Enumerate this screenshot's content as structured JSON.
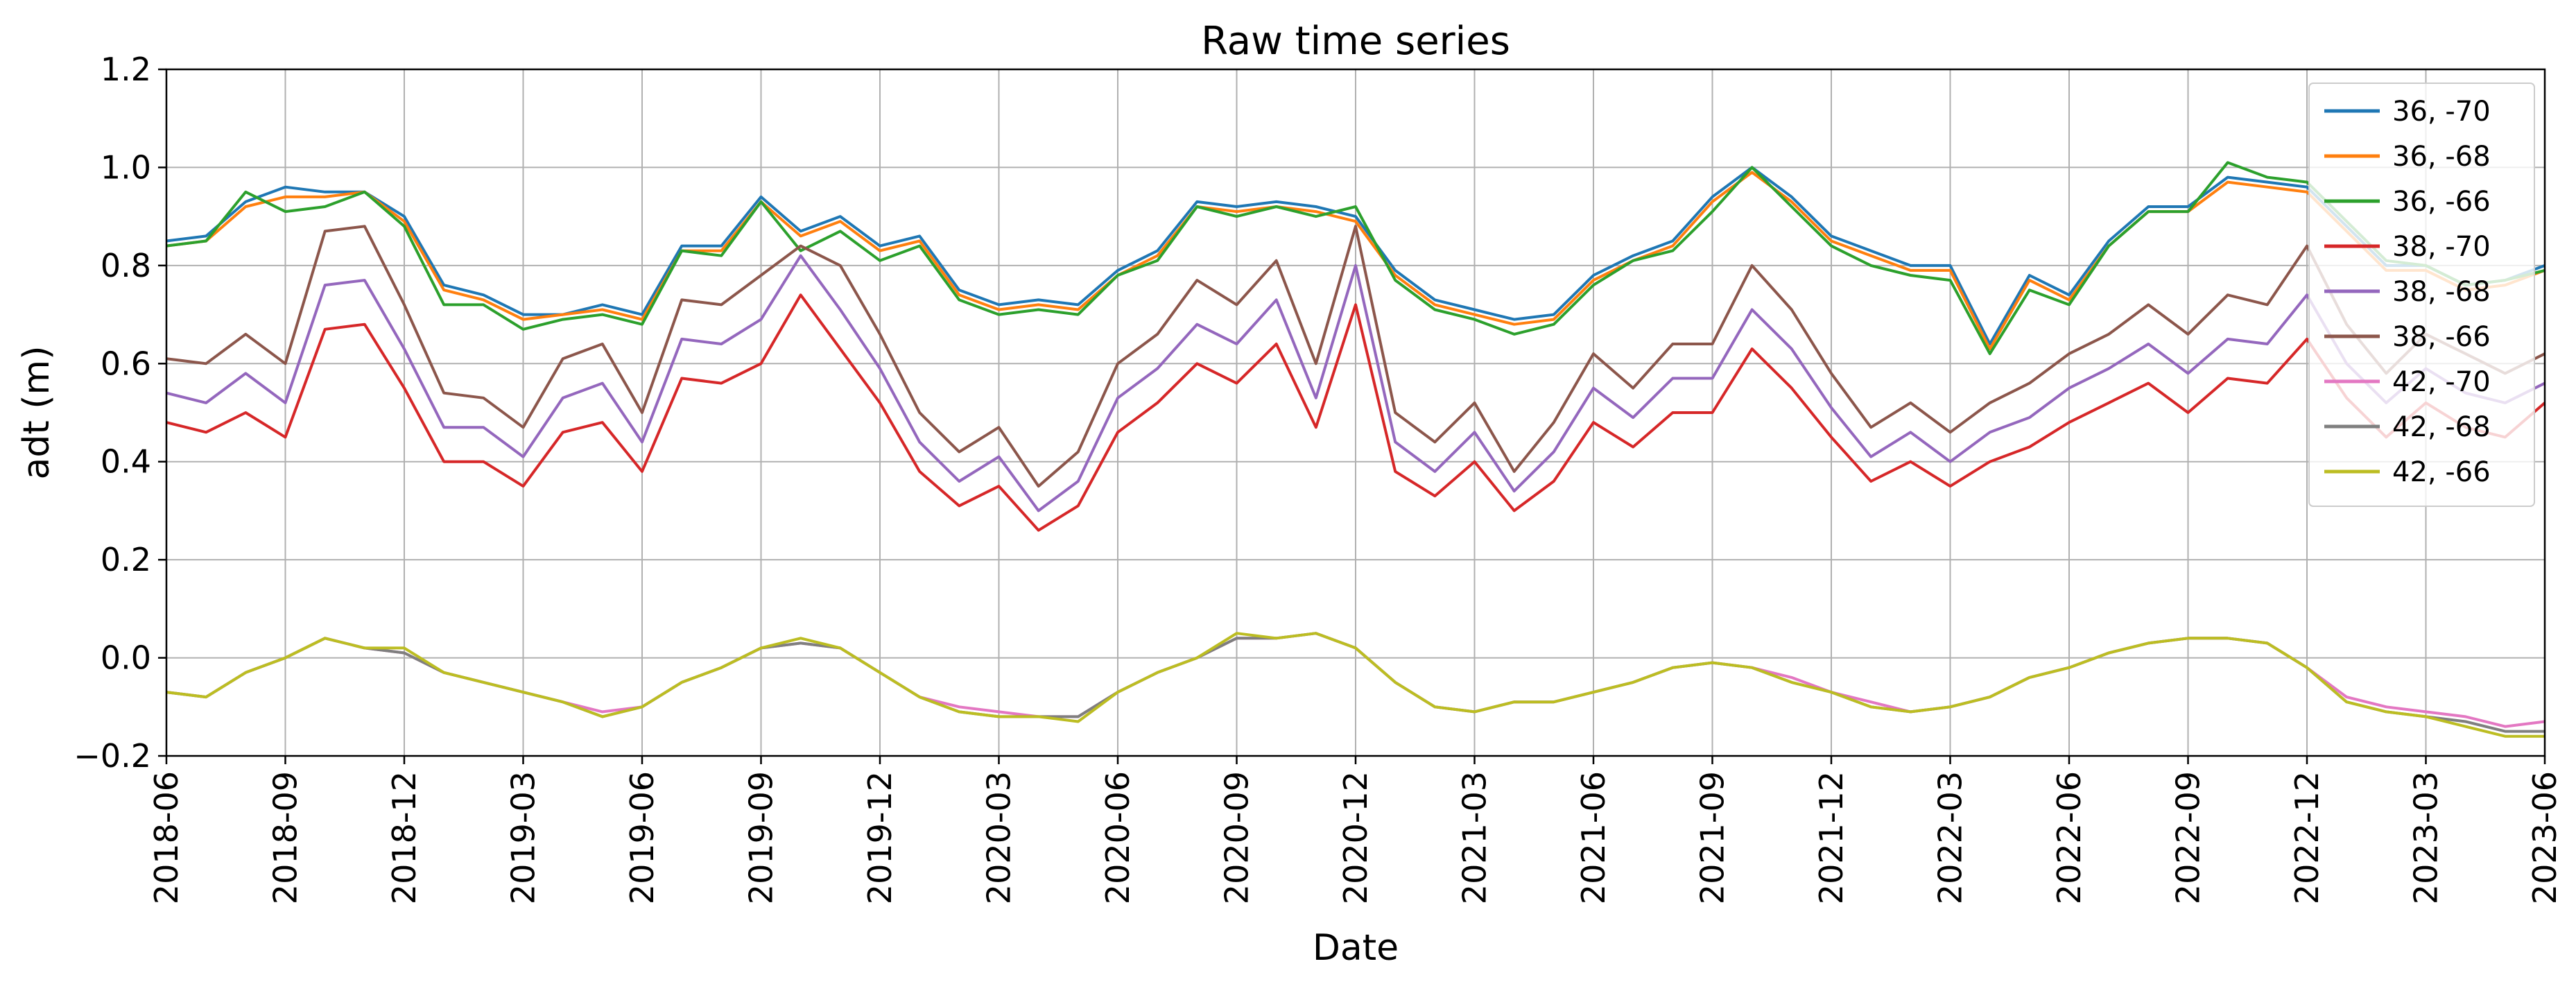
{
  "chart_data": {
    "type": "line",
    "title": "Raw time series",
    "xlabel": "Date",
    "ylabel": "adt (m)",
    "xlim": [
      "2018-06",
      "2023-06"
    ],
    "ylim": [
      -0.2,
      1.2
    ],
    "grid": true,
    "legend_position": "top-right",
    "x_ticks": [
      "2018-06",
      "2018-09",
      "2018-12",
      "2019-03",
      "2019-06",
      "2019-09",
      "2019-12",
      "2020-03",
      "2020-06",
      "2020-09",
      "2020-12",
      "2021-03",
      "2021-06",
      "2021-09",
      "2021-12",
      "2022-03",
      "2022-06",
      "2022-09",
      "2022-12",
      "2023-03",
      "2023-06"
    ],
    "y_ticks": [
      "−0.2",
      "0.0",
      "0.2",
      "0.4",
      "0.6",
      "0.8",
      "1.0",
      "1.2"
    ],
    "x": [
      "2018-06",
      "2018-07",
      "2018-08",
      "2018-09",
      "2018-10",
      "2018-11",
      "2018-12",
      "2019-01",
      "2019-02",
      "2019-03",
      "2019-04",
      "2019-05",
      "2019-06",
      "2019-07",
      "2019-08",
      "2019-09",
      "2019-10",
      "2019-11",
      "2019-12",
      "2020-01",
      "2020-02",
      "2020-03",
      "2020-04",
      "2020-05",
      "2020-06",
      "2020-07",
      "2020-08",
      "2020-09",
      "2020-10",
      "2020-11",
      "2020-12",
      "2021-01",
      "2021-02",
      "2021-03",
      "2021-04",
      "2021-05",
      "2021-06",
      "2021-07",
      "2021-08",
      "2021-09",
      "2021-10",
      "2021-11",
      "2021-12",
      "2022-01",
      "2022-02",
      "2022-03",
      "2022-04",
      "2022-05",
      "2022-06",
      "2022-07",
      "2022-08",
      "2022-09",
      "2022-10",
      "2022-11",
      "2022-12",
      "2023-01",
      "2023-02",
      "2023-03",
      "2023-04",
      "2023-05",
      "2023-06"
    ],
    "series": [
      {
        "name": "36, -70",
        "color": "#1f77b4",
        "values": [
          0.85,
          0.86,
          0.93,
          0.96,
          0.95,
          0.95,
          0.9,
          0.76,
          0.74,
          0.7,
          0.7,
          0.72,
          0.7,
          0.84,
          0.84,
          0.94,
          0.87,
          0.9,
          0.84,
          0.86,
          0.75,
          0.72,
          0.73,
          0.72,
          0.79,
          0.83,
          0.93,
          0.92,
          0.93,
          0.92,
          0.9,
          0.79,
          0.73,
          0.71,
          0.69,
          0.7,
          0.78,
          0.82,
          0.85,
          0.94,
          1.0,
          0.94,
          0.86,
          0.83,
          0.8,
          0.8,
          0.64,
          0.78,
          0.74,
          0.85,
          0.92,
          0.92,
          0.98,
          0.97,
          0.96,
          0.88,
          0.8,
          0.8,
          0.76,
          0.77,
          0.8
        ]
      },
      {
        "name": "36, -68",
        "color": "#ff7f0e",
        "values": [
          0.84,
          0.85,
          0.92,
          0.94,
          0.94,
          0.95,
          0.89,
          0.75,
          0.73,
          0.69,
          0.7,
          0.71,
          0.69,
          0.83,
          0.83,
          0.93,
          0.86,
          0.89,
          0.83,
          0.85,
          0.74,
          0.71,
          0.72,
          0.71,
          0.78,
          0.82,
          0.92,
          0.91,
          0.92,
          0.91,
          0.89,
          0.78,
          0.72,
          0.7,
          0.68,
          0.69,
          0.77,
          0.81,
          0.84,
          0.93,
          0.99,
          0.93,
          0.85,
          0.82,
          0.79,
          0.79,
          0.63,
          0.77,
          0.73,
          0.84,
          0.91,
          0.91,
          0.97,
          0.96,
          0.95,
          0.87,
          0.79,
          0.79,
          0.75,
          0.76,
          0.79
        ]
      },
      {
        "name": "36, -66",
        "color": "#2ca02c",
        "values": [
          0.84,
          0.85,
          0.95,
          0.91,
          0.92,
          0.95,
          0.88,
          0.72,
          0.72,
          0.67,
          0.69,
          0.7,
          0.68,
          0.83,
          0.82,
          0.93,
          0.83,
          0.87,
          0.81,
          0.84,
          0.73,
          0.7,
          0.71,
          0.7,
          0.78,
          0.81,
          0.92,
          0.9,
          0.92,
          0.9,
          0.92,
          0.77,
          0.71,
          0.69,
          0.66,
          0.68,
          0.76,
          0.81,
          0.83,
          0.91,
          1.0,
          0.92,
          0.84,
          0.8,
          0.78,
          0.77,
          0.62,
          0.75,
          0.72,
          0.84,
          0.91,
          0.91,
          1.01,
          0.98,
          0.97,
          0.89,
          0.81,
          0.8,
          0.76,
          0.77,
          0.79
        ]
      },
      {
        "name": "38, -70",
        "color": "#d62728",
        "values": [
          0.48,
          0.46,
          0.5,
          0.45,
          0.67,
          0.68,
          0.55,
          0.4,
          0.4,
          0.35,
          0.46,
          0.48,
          0.38,
          0.57,
          0.56,
          0.6,
          0.74,
          0.63,
          0.52,
          0.38,
          0.31,
          0.35,
          0.26,
          0.31,
          0.46,
          0.52,
          0.6,
          0.56,
          0.64,
          0.47,
          0.72,
          0.38,
          0.33,
          0.4,
          0.3,
          0.36,
          0.48,
          0.43,
          0.5,
          0.5,
          0.63,
          0.55,
          0.45,
          0.36,
          0.4,
          0.35,
          0.4,
          0.43,
          0.48,
          0.52,
          0.56,
          0.5,
          0.57,
          0.56,
          0.65,
          0.53,
          0.45,
          0.52,
          0.47,
          0.45,
          0.52
        ]
      },
      {
        "name": "38, -68",
        "color": "#9467bd",
        "values": [
          0.54,
          0.52,
          0.58,
          0.52,
          0.76,
          0.77,
          0.63,
          0.47,
          0.47,
          0.41,
          0.53,
          0.56,
          0.44,
          0.65,
          0.64,
          0.69,
          0.82,
          0.71,
          0.59,
          0.44,
          0.36,
          0.41,
          0.3,
          0.36,
          0.53,
          0.59,
          0.68,
          0.64,
          0.73,
          0.53,
          0.8,
          0.44,
          0.38,
          0.46,
          0.34,
          0.42,
          0.55,
          0.49,
          0.57,
          0.57,
          0.71,
          0.63,
          0.51,
          0.41,
          0.46,
          0.4,
          0.46,
          0.49,
          0.55,
          0.59,
          0.64,
          0.58,
          0.65,
          0.64,
          0.74,
          0.6,
          0.52,
          0.59,
          0.54,
          0.52,
          0.56
        ]
      },
      {
        "name": "38, -66",
        "color": "#8c564b",
        "values": [
          0.61,
          0.6,
          0.66,
          0.6,
          0.87,
          0.88,
          0.72,
          0.54,
          0.53,
          0.47,
          0.61,
          0.64,
          0.5,
          0.73,
          0.72,
          0.78,
          0.84,
          0.8,
          0.66,
          0.5,
          0.42,
          0.47,
          0.35,
          0.42,
          0.6,
          0.66,
          0.77,
          0.72,
          0.81,
          0.6,
          0.88,
          0.5,
          0.44,
          0.52,
          0.38,
          0.48,
          0.62,
          0.55,
          0.64,
          0.64,
          0.8,
          0.71,
          0.58,
          0.47,
          0.52,
          0.46,
          0.52,
          0.56,
          0.62,
          0.66,
          0.72,
          0.66,
          0.74,
          0.72,
          0.84,
          0.68,
          0.58,
          0.66,
          0.62,
          0.58,
          0.62
        ]
      },
      {
        "name": "42, -70",
        "color": "#e377c2",
        "values": [
          -0.07,
          -0.08,
          -0.03,
          0.0,
          0.04,
          0.02,
          0.01,
          -0.03,
          -0.05,
          -0.07,
          -0.09,
          -0.11,
          -0.1,
          -0.05,
          -0.02,
          0.02,
          0.03,
          0.02,
          -0.03,
          -0.08,
          -0.1,
          -0.11,
          -0.12,
          -0.12,
          -0.07,
          -0.03,
          0.0,
          0.04,
          0.04,
          0.05,
          0.02,
          -0.05,
          -0.1,
          -0.11,
          -0.09,
          -0.09,
          -0.07,
          -0.05,
          -0.02,
          -0.01,
          -0.02,
          -0.04,
          -0.07,
          -0.09,
          -0.11,
          -0.1,
          -0.08,
          -0.04,
          -0.02,
          0.01,
          0.03,
          0.04,
          0.04,
          0.03,
          -0.02,
          -0.08,
          -0.1,
          -0.11,
          -0.12,
          -0.14,
          -0.13
        ]
      },
      {
        "name": "42, -68",
        "color": "#7f7f7f",
        "values": [
          -0.07,
          -0.08,
          -0.03,
          0.0,
          0.04,
          0.02,
          0.01,
          -0.03,
          -0.05,
          -0.07,
          -0.09,
          -0.12,
          -0.1,
          -0.05,
          -0.02,
          0.02,
          0.03,
          0.02,
          -0.03,
          -0.08,
          -0.11,
          -0.12,
          -0.12,
          -0.12,
          -0.07,
          -0.03,
          0.0,
          0.04,
          0.04,
          0.05,
          0.02,
          -0.05,
          -0.1,
          -0.11,
          -0.09,
          -0.09,
          -0.07,
          -0.05,
          -0.02,
          -0.01,
          -0.02,
          -0.05,
          -0.07,
          -0.1,
          -0.11,
          -0.1,
          -0.08,
          -0.04,
          -0.02,
          0.01,
          0.03,
          0.04,
          0.04,
          0.03,
          -0.02,
          -0.09,
          -0.11,
          -0.12,
          -0.13,
          -0.15,
          -0.15
        ]
      },
      {
        "name": "42, -66",
        "color": "#bcbd22",
        "values": [
          -0.07,
          -0.08,
          -0.03,
          0.0,
          0.04,
          0.02,
          0.02,
          -0.03,
          -0.05,
          -0.07,
          -0.09,
          -0.12,
          -0.1,
          -0.05,
          -0.02,
          0.02,
          0.04,
          0.02,
          -0.03,
          -0.08,
          -0.11,
          -0.12,
          -0.12,
          -0.13,
          -0.07,
          -0.03,
          0.0,
          0.05,
          0.04,
          0.05,
          0.02,
          -0.05,
          -0.1,
          -0.11,
          -0.09,
          -0.09,
          -0.07,
          -0.05,
          -0.02,
          -0.01,
          -0.02,
          -0.05,
          -0.07,
          -0.1,
          -0.11,
          -0.1,
          -0.08,
          -0.04,
          -0.02,
          0.01,
          0.03,
          0.04,
          0.04,
          0.03,
          -0.02,
          -0.09,
          -0.11,
          -0.12,
          -0.14,
          -0.16,
          -0.16
        ]
      }
    ]
  }
}
